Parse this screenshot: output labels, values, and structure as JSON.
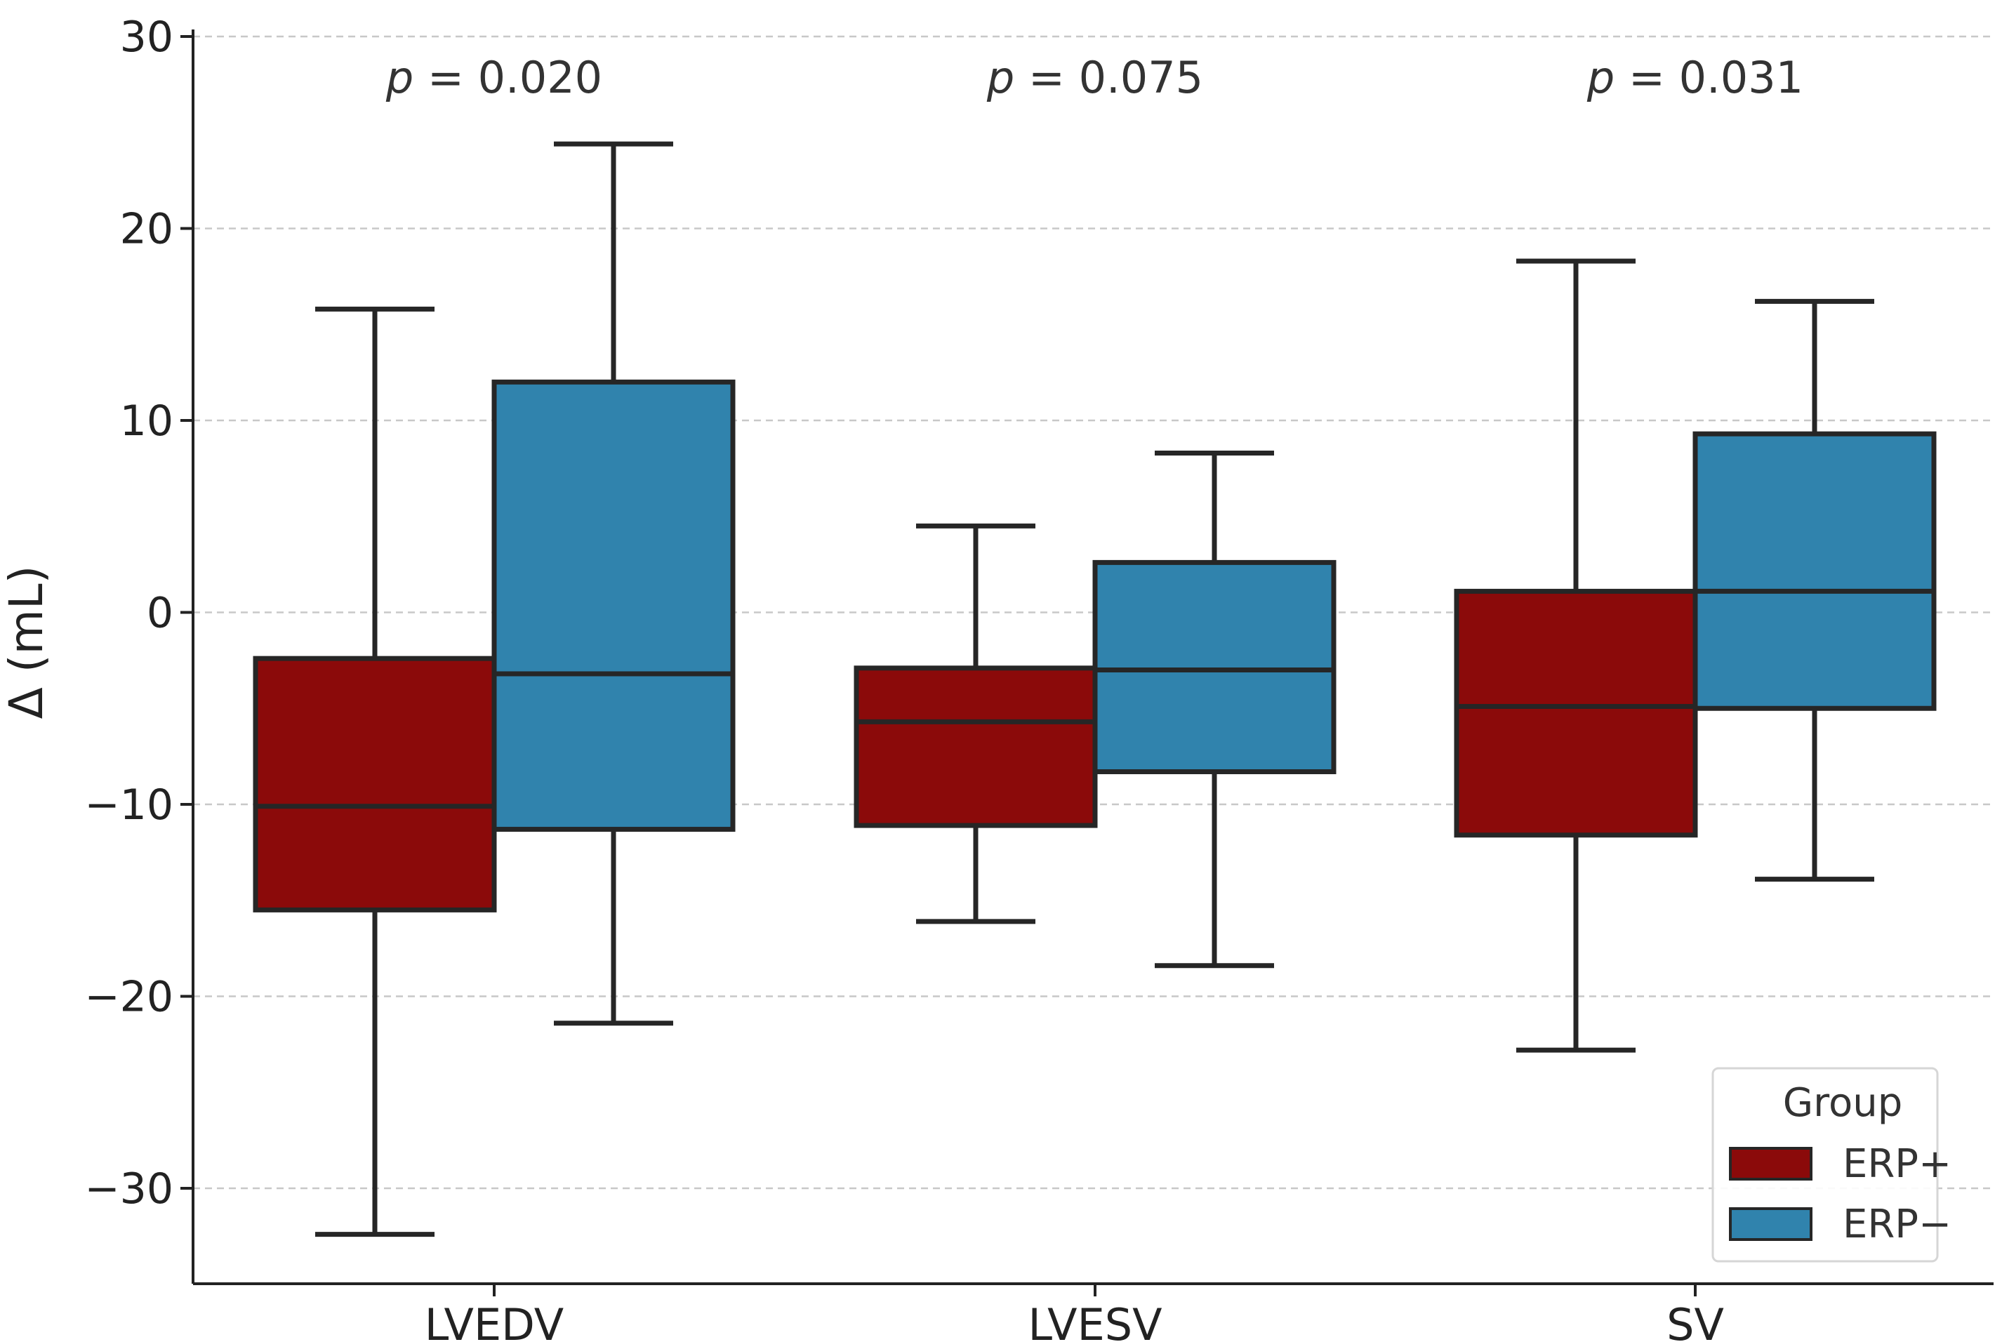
{
  "chart_data": {
    "type": "box",
    "title": "",
    "xlabel": "",
    "ylabel": "Δ (mL)",
    "ylim": [
      -35,
      30
    ],
    "yticks": [
      30,
      20,
      10,
      0,
      -10,
      -20,
      -30
    ],
    "ytick_labels": [
      "30",
      "20",
      "10",
      "0",
      "−10",
      "−20",
      "−30"
    ],
    "grid": true,
    "categories": [
      "LVEDV",
      "LVESV",
      "SV"
    ],
    "p_values": [
      {
        "p": "p",
        "eq": " = ",
        "value": "0.020"
      },
      {
        "p": "p",
        "eq": " = ",
        "value": "0.075"
      },
      {
        "p": "p",
        "eq": " = ",
        "value": "0.031"
      }
    ],
    "legend": {
      "title": "Group",
      "position": "bottom-right",
      "entries": [
        "ERP+",
        "ERP−"
      ]
    },
    "series": [
      {
        "name": "ERP+",
        "color": "#8b0a0a",
        "boxes": [
          {
            "whisker_low": -32.4,
            "q1": -15.5,
            "median": -10.1,
            "q3": -2.4,
            "whisker_high": 15.8
          },
          {
            "whisker_low": -16.1,
            "q1": -11.1,
            "median": -5.7,
            "q3": -2.9,
            "whisker_high": 4.5
          },
          {
            "whisker_low": -22.8,
            "q1": -11.6,
            "median": -4.9,
            "q3": 1.1,
            "whisker_high": 18.3
          }
        ]
      },
      {
        "name": "ERP−",
        "color": "#3083ad",
        "boxes": [
          {
            "whisker_low": -21.4,
            "q1": -11.3,
            "median": -3.2,
            "q3": 12.0,
            "whisker_high": 24.4
          },
          {
            "whisker_low": -18.4,
            "q1": -8.3,
            "median": -3.0,
            "q3": 2.6,
            "whisker_high": 8.3
          },
          {
            "whisker_low": -13.9,
            "q1": -5.0,
            "median": 1.1,
            "q3": 9.3,
            "whisker_high": 16.2
          }
        ]
      }
    ]
  }
}
